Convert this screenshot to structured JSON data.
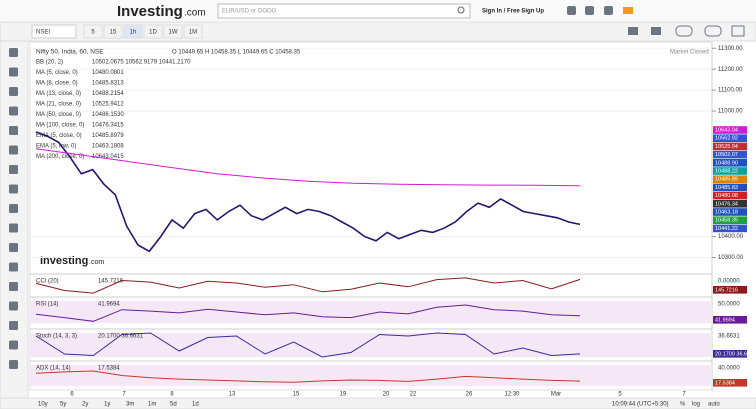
{
  "header": {
    "logo": "Investing",
    "logo_suffix": ".com",
    "search_placeholder": "EUR/USD or GOOG",
    "sign_in": "Sign In / Free Sign Up"
  },
  "toolbar": {
    "symbol": "NSEI",
    "intervals": [
      "5",
      "15",
      "1h",
      "1D",
      "1W",
      "1M"
    ]
  },
  "chart_data": {
    "type": "line",
    "ohlc_text": "O 10449.65 H 10458.35 L 10449.65 C 10458.35",
    "status": "Market Closed",
    "ylim": [
      10250,
      11330
    ],
    "yticks": [
      {
        "value": 11300,
        "label": "11300.00"
      },
      {
        "value": 11200,
        "label": "11200.00"
      },
      {
        "value": 11100,
        "label": "11100.00"
      },
      {
        "value": 11000,
        "label": "11000.00"
      },
      {
        "value": 10400,
        "label": "10400.00"
      },
      {
        "value": 10300,
        "label": "10300.00"
      }
    ],
    "series": [
      {
        "name": "Nifty 50, India, 60, NSE",
        "color": "#2b1470",
        "values": [
          10900,
          10880,
          10850,
          10780,
          10700,
          10720,
          10650,
          10600,
          10450,
          10360,
          10330,
          10400,
          10480,
          10440,
          10510,
          10530,
          10480,
          10520,
          10550,
          10500,
          10480,
          10510,
          10540,
          10510,
          10530,
          10520,
          10500,
          10470,
          10440,
          10400,
          10380,
          10420,
          10390,
          10410,
          10430,
          10420,
          10440,
          10470,
          10520,
          10560,
          10540,
          10580,
          10550,
          10520,
          10510,
          10500,
          10490,
          10470,
          10458.35
        ]
      },
      {
        "name": "MA (200, close, 0)",
        "value_text": "10643.0415",
        "color": "#d21bd2",
        "values": [
          10820,
          10790,
          10760,
          10730,
          10700,
          10680,
          10665,
          10655,
          10650,
          10648,
          10646,
          10645,
          10643.04
        ]
      }
    ],
    "legend": [
      {
        "name": "BB (20, 2)",
        "value_text": "10502.0675  10562.9179  10441.2170",
        "color": "#3355cc"
      },
      {
        "name": "MA (5, close, 0)",
        "value_text": "10480.0801",
        "color": "#d02020"
      },
      {
        "name": "MA (8, close, 0)",
        "value_text": "10485.8313",
        "color": "#2050c0"
      },
      {
        "name": "MA (13, close, 0)",
        "value_text": "10488.2154",
        "color": "#10a0a0"
      },
      {
        "name": "MA (21, close, 0)",
        "value_text": "10525.9412",
        "color": "#c03030"
      },
      {
        "name": "MA (50, close, 0)",
        "value_text": "10486.1530",
        "color": "#e08000"
      },
      {
        "name": "MA (100, close, 0)",
        "value_text": "10476.3415",
        "color": "#333333"
      },
      {
        "name": "EMA (5, close, 0)",
        "value_text": "10485.8979",
        "color": "#8020a0"
      },
      {
        "name": "EMA (5, low, 0)",
        "value_text": "10463.1808",
        "color": "#2050c0"
      }
    ],
    "price_labels": [
      {
        "label": "10643.04",
        "color": "#d21bd2"
      },
      {
        "label": "10562.92",
        "color": "#3355cc"
      },
      {
        "label": "10525.94",
        "color": "#c03030"
      },
      {
        "label": "10502.07",
        "color": "#3355cc"
      },
      {
        "label": "10488.90",
        "color": "#2050c0"
      },
      {
        "label": "10488.22",
        "color": "#10a0a0"
      },
      {
        "label": "10485.89",
        "color": "#e08000"
      },
      {
        "label": "10485.83",
        "color": "#2050c0"
      },
      {
        "label": "10480.08",
        "color": "#d02020"
      },
      {
        "label": "10476.34",
        "color": "#333333"
      },
      {
        "label": "10463.18",
        "color": "#2050c0"
      },
      {
        "label": "10458.35",
        "color": "#20a040"
      },
      {
        "label": "10441.22",
        "color": "#3355cc"
      }
    ],
    "x_labels": [
      "6",
      "7",
      "8",
      "13",
      "15",
      "19",
      "20",
      "22",
      "26",
      "12:30",
      "Mar",
      "5",
      "7"
    ],
    "panels": [
      {
        "name": "CCI (20)",
        "value_text": "145.7216",
        "color": "#8b1a1a",
        "axis_label": "0.00000",
        "ylim": [
          -250,
          250
        ],
        "values": [
          50,
          -120,
          -180,
          120,
          80,
          -60,
          100,
          60,
          -40,
          20,
          -150,
          -90,
          60,
          -30,
          140,
          180,
          60,
          120,
          -80,
          145.72
        ]
      },
      {
        "name": "RSI (14)",
        "value_text": "41.9694",
        "color": "#6a1b9a",
        "axis_label": "50.0000",
        "ylim": [
          20,
          80
        ],
        "values": [
          45,
          38,
          30,
          55,
          52,
          48,
          56,
          50,
          44,
          48,
          40,
          38,
          50,
          46,
          60,
          65,
          55,
          52,
          44,
          41.97
        ]
      },
      {
        "name": "Stoch (14, 3, 3)",
        "value_text": "20.1700  36.6631",
        "color": "#3a2a9a",
        "axis_label": "36.6631",
        "ylim": [
          0,
          100
        ],
        "values": [
          80,
          20,
          15,
          85,
          90,
          30,
          75,
          80,
          20,
          60,
          10,
          25,
          85,
          80,
          90,
          85,
          20,
          40,
          15,
          20.17
        ]
      },
      {
        "name": "ADX (14, 14)",
        "value_text": "17.5384",
        "color": "#c0392b",
        "axis_label": "40.0000",
        "ylim": [
          0,
          60
        ],
        "values": [
          35,
          38,
          40,
          30,
          25,
          22,
          20,
          18,
          16,
          15,
          18,
          20,
          19,
          17,
          22,
          28,
          25,
          22,
          19,
          17.54
        ]
      }
    ]
  },
  "footer": {
    "periods": [
      "10y",
      "5y",
      "2y",
      "1y",
      "3m",
      "1m",
      "5d",
      "1d"
    ],
    "time": "10:09:44 (UTC+5:30)",
    "percent": "%",
    "log": "log",
    "auto": "auto"
  }
}
